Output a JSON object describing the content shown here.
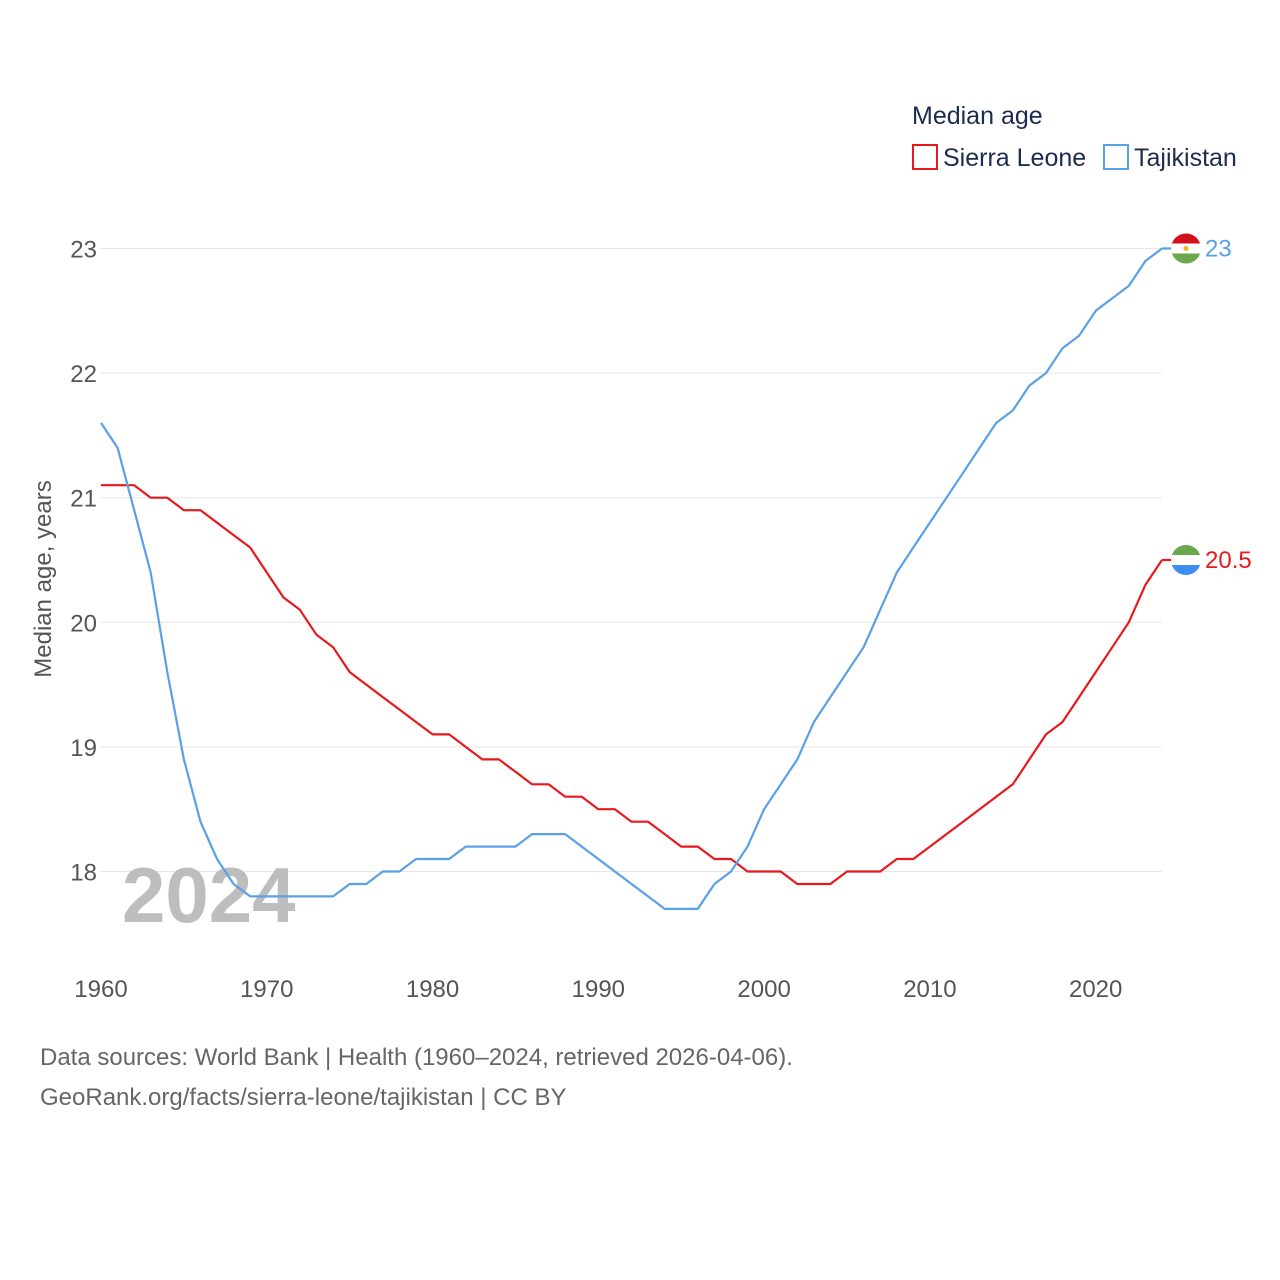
{
  "chart_data": {
    "type": "line",
    "legend_title": "Median age",
    "legend_position": "top-right",
    "ylabel": "Median age, years",
    "xlabel": "",
    "xlim": [
      1960,
      2024
    ],
    "ylim": [
      17.4,
      23.2
    ],
    "x_ticks": [
      1960,
      1970,
      1980,
      1990,
      2000,
      2010,
      2020
    ],
    "y_ticks": [
      18,
      19,
      20,
      21,
      22,
      23
    ],
    "grid": true,
    "year_watermark": "2024",
    "x": [
      1960,
      1961,
      1962,
      1963,
      1964,
      1965,
      1966,
      1967,
      1968,
      1969,
      1970,
      1971,
      1972,
      1973,
      1974,
      1975,
      1976,
      1977,
      1978,
      1979,
      1980,
      1981,
      1982,
      1983,
      1984,
      1985,
      1986,
      1987,
      1988,
      1989,
      1990,
      1991,
      1992,
      1993,
      1994,
      1995,
      1996,
      1997,
      1998,
      1999,
      2000,
      2001,
      2002,
      2003,
      2004,
      2005,
      2006,
      2007,
      2008,
      2009,
      2010,
      2011,
      2012,
      2013,
      2014,
      2015,
      2016,
      2017,
      2018,
      2019,
      2020,
      2021,
      2022,
      2023,
      2024
    ],
    "series": [
      {
        "name": "Sierra Leone",
        "color": "#e8191c",
        "end_label": "20.5",
        "values": [
          21.1,
          21.1,
          21.1,
          21.0,
          21.0,
          20.9,
          20.9,
          20.8,
          20.7,
          20.6,
          20.4,
          20.2,
          20.1,
          19.9,
          19.8,
          19.6,
          19.5,
          19.4,
          19.3,
          19.2,
          19.1,
          19.1,
          19.0,
          18.9,
          18.9,
          18.8,
          18.7,
          18.7,
          18.6,
          18.6,
          18.5,
          18.5,
          18.4,
          18.4,
          18.3,
          18.2,
          18.2,
          18.1,
          18.1,
          18.0,
          18.0,
          18.0,
          17.9,
          17.9,
          17.9,
          18.0,
          18.0,
          18.0,
          18.1,
          18.1,
          18.2,
          18.3,
          18.4,
          18.5,
          18.6,
          18.7,
          18.9,
          19.1,
          19.2,
          19.4,
          19.6,
          19.8,
          20.0,
          20.3,
          20.5
        ]
      },
      {
        "name": "Tajikistan",
        "color": "#5aa0e6",
        "end_label": "23",
        "values": [
          21.6,
          21.4,
          20.9,
          20.4,
          19.6,
          18.9,
          18.4,
          18.1,
          17.9,
          17.8,
          17.8,
          17.8,
          17.8,
          17.8,
          17.8,
          17.9,
          17.9,
          18.0,
          18.0,
          18.1,
          18.1,
          18.1,
          18.2,
          18.2,
          18.2,
          18.2,
          18.3,
          18.3,
          18.3,
          18.2,
          18.1,
          18.0,
          17.9,
          17.8,
          17.7,
          17.7,
          17.7,
          17.9,
          18.0,
          18.2,
          18.5,
          18.7,
          18.9,
          19.2,
          19.4,
          19.6,
          19.8,
          20.1,
          20.4,
          20.6,
          20.8,
          21.0,
          21.2,
          21.4,
          21.6,
          21.7,
          21.9,
          22.0,
          22.2,
          22.3,
          22.5,
          22.6,
          22.7,
          22.9,
          23.0
        ]
      }
    ]
  },
  "footer": {
    "line1": "Data sources: World Bank | Health (1960–2024, retrieved 2026-04-06).",
    "line2": "GeoRank.org/facts/sierra-leone/tajikistan | CC BY"
  },
  "flags": {
    "sierra_leone": [
      "#6aa84f",
      "#ffffff",
      "#3d8ef0"
    ],
    "tajikistan": [
      "#d0101c",
      "#ffffff",
      "#6aa84f"
    ]
  }
}
